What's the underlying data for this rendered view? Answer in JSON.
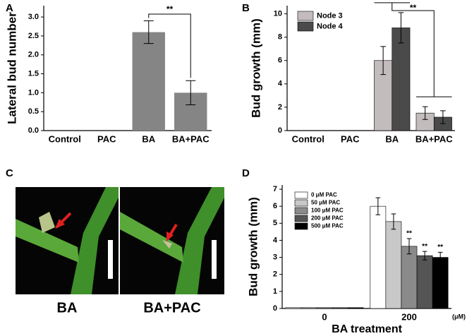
{
  "chart_data": [
    {
      "type": "bar",
      "panel": "A",
      "ylabel": "Lateral bud number",
      "categories": [
        "Control",
        "PAC",
        "BA",
        "BA+PAC"
      ],
      "values": [
        0,
        0,
        2.6,
        1.0
      ],
      "errors": [
        null,
        null,
        0.3,
        0.32
      ],
      "color": "#858585",
      "ylim": [
        0,
        3.3
      ],
      "yticks": [
        {
          "value": 0,
          "label": "0.0"
        },
        {
          "value": 0.5,
          "label": "0.5"
        },
        {
          "value": 1,
          "label": "1.0"
        },
        {
          "value": 1.5,
          "label": "1.5"
        },
        {
          "value": 2,
          "label": "2.0"
        },
        {
          "value": 2.5,
          "label": "2.5"
        },
        {
          "value": 3,
          "label": "3.0"
        }
      ],
      "annotation": "**"
    },
    {
      "type": "bar",
      "panel": "B",
      "ylabel": "Bud growth (mm)",
      "categories": [
        "Control",
        "PAC",
        "BA",
        "BA+PAC"
      ],
      "series": [
        {
          "name": "Node 3",
          "color": "#c3bcbc",
          "values": [
            0,
            0,
            6.0,
            1.5
          ],
          "errors": [
            null,
            null,
            1.2,
            0.55
          ]
        },
        {
          "name": "Node 4",
          "color": "#4a4a4a",
          "values": [
            0,
            0,
            8.8,
            1.15
          ],
          "errors": [
            null,
            null,
            1.3,
            0.55
          ]
        }
      ],
      "ylim": [
        0,
        10.7
      ],
      "yticks": [
        0,
        2,
        4,
        6,
        8,
        10
      ],
      "legend": "top-left",
      "annotation": "**"
    },
    {
      "type": "bar",
      "panel": "D",
      "ylabel": "Bud growth (mm)",
      "xlabel": "BA treatment",
      "x_unit": "(μM)",
      "categories": [
        "0",
        "200"
      ],
      "series": [
        {
          "name": "0 μM PAC",
          "color": "#ffffff",
          "values": [
            0.05,
            6.0
          ],
          "errors": [
            null,
            0.5
          ],
          "significance": [
            null,
            null
          ]
        },
        {
          "name": "50 μM PAC",
          "color": "#c8c8c8",
          "values": [
            0.05,
            5.1
          ],
          "errors": [
            null,
            0.45
          ],
          "significance": [
            null,
            null
          ]
        },
        {
          "name": "100 μM PAC",
          "color": "#8a8a8a",
          "values": [
            0.05,
            3.65
          ],
          "errors": [
            null,
            0.45
          ],
          "significance": [
            null,
            "**"
          ]
        },
        {
          "name": "200 μM PAC",
          "color": "#555555",
          "values": [
            0.05,
            3.1
          ],
          "errors": [
            null,
            0.25
          ],
          "significance": [
            null,
            "**"
          ]
        },
        {
          "name": "500 μM PAC",
          "color": "#000000",
          "values": [
            0.05,
            3.0
          ],
          "errors": [
            null,
            0.3
          ],
          "significance": [
            null,
            "**"
          ]
        }
      ],
      "ylim": [
        0,
        7.25
      ],
      "yticks": [
        0,
        1,
        2,
        3,
        4,
        5,
        6,
        7
      ],
      "legend": "top-left"
    }
  ],
  "photo_panel": {
    "label": "C",
    "captions": [
      "BA",
      "BA+PAC"
    ]
  }
}
